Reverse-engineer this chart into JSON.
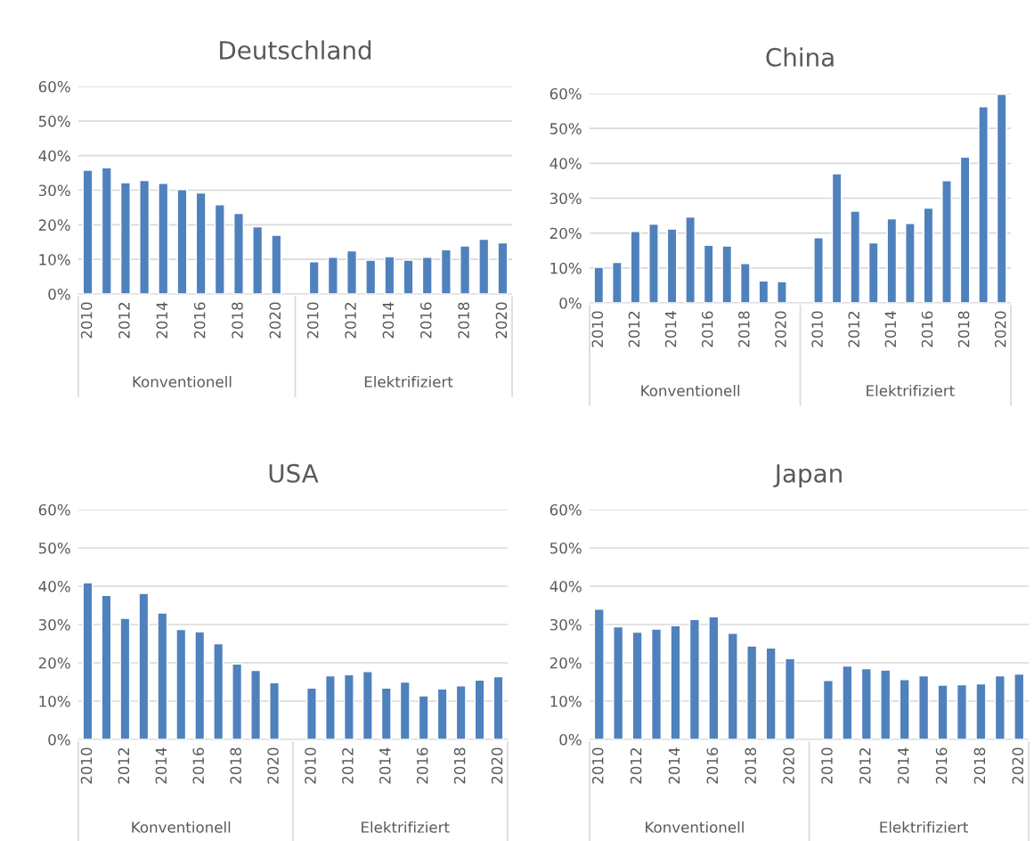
{
  "chart_data": [
    {
      "type": "bar",
      "title": "Deutschland",
      "categories": [
        "2010",
        null,
        "2012",
        null,
        "2014",
        null,
        "2016",
        null,
        "2018",
        null,
        "2020",
        null,
        "2010",
        null,
        "2012",
        null,
        "2014",
        null,
        "2016",
        null,
        "2018",
        null,
        "2020"
      ],
      "values": [
        35.8,
        36.5,
        32.2,
        32.8,
        32.0,
        30.2,
        29.2,
        25.8,
        23.3,
        19.4,
        17.0,
        null,
        9.3,
        10.6,
        12.5,
        9.8,
        10.8,
        9.8,
        10.6,
        12.8,
        13.9,
        15.8,
        14.8
      ],
      "color": "#4f81bd",
      "ylim": [
        0,
        60
      ],
      "yticks": [
        {
          "value": 0,
          "label": "0%"
        },
        {
          "value": 10,
          "label": "10%"
        },
        {
          "value": 20,
          "label": "20%"
        },
        {
          "value": 30,
          "label": "30%"
        },
        {
          "value": 40,
          "label": "40%"
        },
        {
          "value": 50,
          "label": "50%"
        },
        {
          "value": 60,
          "label": "60%"
        }
      ],
      "grid": "y",
      "annotations": [
        "Konventionell",
        "Elektrifiziert"
      ]
    },
    {
      "type": "bar",
      "title": "China",
      "categories": [
        "2010",
        null,
        "2012",
        null,
        "2014",
        null,
        "2016",
        null,
        "2018",
        null,
        "2020",
        null,
        "2010",
        null,
        "2012",
        null,
        "2014",
        null,
        "2016",
        null,
        "2018",
        null,
        "2020"
      ],
      "values": [
        10.2,
        11.6,
        20.5,
        22.6,
        21.2,
        24.6,
        16.5,
        16.3,
        11.3,
        6.3,
        6.1,
        null,
        18.7,
        37.0,
        26.3,
        17.2,
        24.1,
        22.8,
        27.2,
        35.0,
        41.8,
        56.2,
        59.8
      ],
      "color": "#4f81bd",
      "ylim": [
        0,
        60
      ],
      "yticks": [
        {
          "value": 0,
          "label": "0%"
        },
        {
          "value": 10,
          "label": "10%"
        },
        {
          "value": 20,
          "label": "20%"
        },
        {
          "value": 30,
          "label": "30%"
        },
        {
          "value": 40,
          "label": "40%"
        },
        {
          "value": 50,
          "label": "50%"
        },
        {
          "value": 60,
          "label": "60%"
        }
      ],
      "grid": "y",
      "annotations": [
        "Konventionell",
        "Elektrifiziert"
      ]
    },
    {
      "type": "bar",
      "title": "USA",
      "categories": [
        "2010",
        null,
        "2012",
        null,
        "2014",
        null,
        "2016",
        null,
        "2018",
        null,
        "2020",
        null,
        "2010",
        null,
        "2012",
        null,
        "2014",
        null,
        "2016",
        null,
        "2018",
        null,
        "2020"
      ],
      "values": [
        40.9,
        37.6,
        31.6,
        38.1,
        33.0,
        28.7,
        28.1,
        25.0,
        19.7,
        18.0,
        14.8,
        null,
        13.4,
        16.6,
        16.9,
        17.7,
        13.4,
        15.0,
        11.4,
        13.2,
        14.0,
        15.5,
        16.4
      ],
      "color": "#4f81bd",
      "ylim": [
        0,
        60
      ],
      "yticks": [
        {
          "value": 0,
          "label": "0%"
        },
        {
          "value": 10,
          "label": "10%"
        },
        {
          "value": 20,
          "label": "20%"
        },
        {
          "value": 30,
          "label": "30%"
        },
        {
          "value": 40,
          "label": "40%"
        },
        {
          "value": 50,
          "label": "50%"
        },
        {
          "value": 60,
          "label": "60%"
        }
      ],
      "grid": "y",
      "annotations": [
        "Konventionell",
        "Elektrifiziert"
      ]
    },
    {
      "type": "bar",
      "title": "Japan",
      "categories": [
        "2010",
        null,
        "2012",
        null,
        "2014",
        null,
        "2016",
        null,
        "2018",
        null,
        "2020",
        null,
        "2010",
        null,
        "2012",
        null,
        "2014",
        null,
        "2016",
        null,
        "2018",
        null,
        "2020"
      ],
      "values": [
        34.0,
        29.4,
        28.0,
        28.8,
        29.7,
        31.3,
        32.0,
        27.7,
        24.4,
        23.9,
        21.1,
        null,
        15.4,
        19.2,
        18.5,
        18.1,
        15.6,
        16.6,
        14.2,
        14.3,
        14.5,
        16.6,
        17.1
      ],
      "color": "#4f81bd",
      "ylim": [
        0,
        60
      ],
      "yticks": [
        {
          "value": 0,
          "label": "0%"
        },
        {
          "value": 10,
          "label": "10%"
        },
        {
          "value": 20,
          "label": "20%"
        },
        {
          "value": 30,
          "label": "30%"
        },
        {
          "value": 40,
          "label": "40%"
        },
        {
          "value": 50,
          "label": "50%"
        },
        {
          "value": 60,
          "label": "60%"
        }
      ],
      "grid": "y",
      "annotations": [
        "Konventionell",
        "Elektrifiziert"
      ]
    }
  ]
}
